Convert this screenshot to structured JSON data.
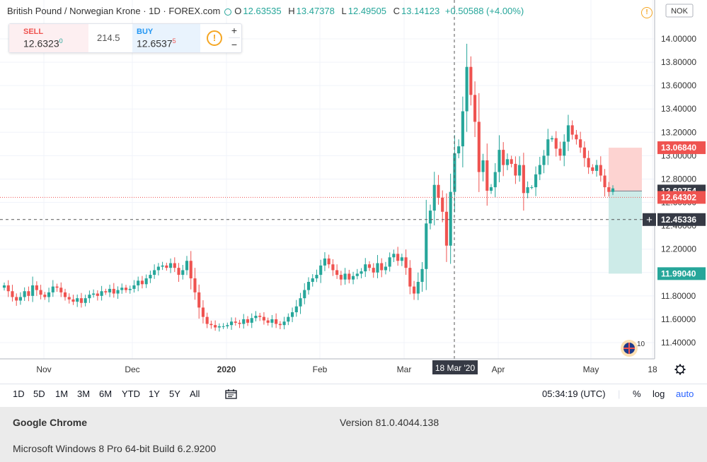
{
  "legend": {
    "title": "British Pound / Norwegian Krone · 1D · FOREX.com",
    "o_label": "O",
    "o_value": "12.63535",
    "h_label": "H",
    "h_value": "13.47378",
    "l_label": "L",
    "l_value": "12.49505",
    "c_label": "C",
    "c_value": "13.14123",
    "change": "+0.50588 (+4.00%)"
  },
  "trade": {
    "sell_label": "SELL",
    "sell_price": "12.6323",
    "sell_sup": "0",
    "spread": "214.5",
    "buy_label": "BUY",
    "buy_price": "12.6537",
    "buy_sup": "5",
    "warn": "!",
    "plus": "+",
    "minus": "−"
  },
  "colors": {
    "up": "#26a69a",
    "down": "#ef5350",
    "grid": "#f0f3fa",
    "profit_zone": "#fdd3d1",
    "loss_zone": "#cdebe8",
    "axis_text": "#333333"
  },
  "chart_data": {
    "type": "candlestick",
    "currency": "NOK",
    "ylim": [
      11.2,
      14.2
    ],
    "yticks": [
      "11.40000",
      "11.60000",
      "11.80000",
      "12.00000",
      "12.20000",
      "12.40000",
      "12.60000",
      "12.80000",
      "13.00000",
      "13.20000",
      "13.40000",
      "13.60000",
      "13.80000",
      "14.00000"
    ],
    "xlabels": [
      "Nov",
      "Dec",
      "2020",
      "Feb",
      "Mar",
      "Apr",
      "May",
      "18"
    ],
    "crosshair_label": "18 Mar '20",
    "price_labels": {
      "top": "13.06840",
      "current": "12.69754",
      "bid": "12.64302",
      "crosshair": "12.45336",
      "bottom": "11.99040"
    },
    "closes": [
      11.89,
      11.84,
      11.79,
      11.76,
      11.79,
      11.84,
      11.8,
      11.89,
      11.85,
      11.81,
      11.79,
      11.83,
      11.88,
      11.87,
      11.83,
      11.79,
      11.77,
      11.75,
      11.78,
      11.74,
      11.78,
      11.81,
      11.82,
      11.8,
      11.84,
      11.83,
      11.86,
      11.82,
      11.85,
      11.87,
      11.85,
      11.86,
      11.89,
      11.93,
      11.9,
      11.95,
      11.98,
      12.02,
      12.05,
      12.06,
      12.04,
      12.08,
      12.04,
      11.98,
      12.02,
      12.1,
      11.95,
      11.83,
      11.7,
      11.62,
      11.56,
      11.55,
      11.53,
      11.54,
      11.54,
      11.55,
      11.58,
      11.57,
      11.56,
      11.6,
      11.57,
      11.61,
      11.63,
      11.62,
      11.59,
      11.57,
      11.6,
      11.56,
      11.55,
      11.58,
      11.62,
      11.66,
      11.71,
      11.78,
      11.85,
      11.92,
      11.95,
      11.98,
      12.06,
      12.12,
      12.07,
      12.02,
      11.98,
      11.94,
      11.99,
      11.94,
      11.97,
      11.99,
      12.01,
      12.07,
      12.04,
      12.0,
      12.08,
      12.02,
      12.05,
      12.13,
      12.16,
      12.1,
      12.13,
      12.04,
      11.88,
      11.82,
      11.92,
      12.03,
      12.42,
      12.53,
      12.75,
      12.64,
      12.52,
      12.23,
      12.69,
      13.02,
      13.08,
      13.38,
      13.76,
      13.52,
      13.29,
      12.86,
      12.96,
      12.7,
      12.73,
      12.86,
      13.05,
      12.92,
      12.97,
      12.93,
      12.83,
      12.92,
      12.68,
      12.73,
      12.73,
      12.84,
      12.92,
      13.0,
      13.14,
      13.15,
      13.06,
      13.0,
      13.12,
      13.26,
      13.18,
      13.14,
      13.07,
      12.98,
      12.9,
      12.87,
      12.92,
      12.83,
      12.73,
      12.69,
      12.72
    ],
    "trade_box": {
      "upper": 13.0684,
      "entry": 12.69754,
      "lower": 11.9904
    }
  },
  "overlay": {
    "flag_count": "10"
  },
  "toolbar": {
    "timeframes": [
      "1D",
      "5D",
      "1M",
      "3M",
      "6M",
      "YTD",
      "1Y",
      "5Y",
      "All"
    ],
    "time": "05:34:19 (UTC)",
    "percent": "%",
    "log": "log",
    "auto": "auto"
  },
  "info": {
    "browser": "Google Chrome",
    "version": "Version 81.0.4044.138",
    "os": "Microsoft Windows 8 Pro 64-bit Build 6.2.9200"
  }
}
